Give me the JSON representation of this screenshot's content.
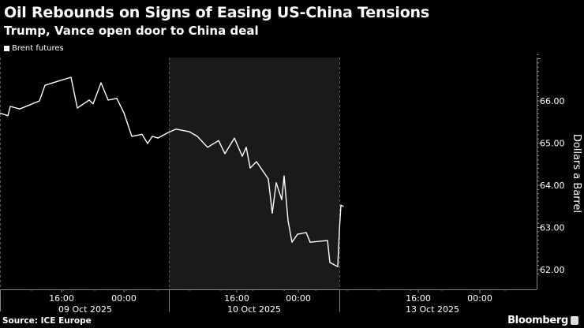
{
  "chart_data": {
    "type": "line",
    "title": "Oil Rebounds on Signs of Easing US-China Tensions",
    "subtitle": "Trump, Vance open door to China deal",
    "legend": [
      "Brent futures"
    ],
    "legend_placement": "top-left",
    "ylabel": "Dollars a Barrel",
    "ylim": [
      61.7,
      67.2
    ],
    "yticks": [
      62,
      63,
      64,
      65,
      66
    ],
    "ytick_labels": [
      "62.00",
      "63.00",
      "64.00",
      "65.00",
      "66.00"
    ],
    "xlim": [
      0,
      68
    ],
    "xticks": [
      {
        "x": 7.8,
        "label": "16:00"
      },
      {
        "x": 15.7,
        "label": "00:00"
      },
      {
        "x": 30,
        "label": "16:00"
      },
      {
        "x": 37.8,
        "label": "00:00"
      },
      {
        "x": 53,
        "label": "16:00"
      },
      {
        "x": 60.8,
        "label": "00:00"
      }
    ],
    "day_labels": [
      {
        "x": 10.8,
        "label": "09 Oct 2025"
      },
      {
        "x": 32.2,
        "label": "10 Oct 2025"
      },
      {
        "x": 54.8,
        "label": "13 Oct 2025"
      }
    ],
    "day_bounds": [
      0,
      21.4,
      43
    ],
    "shaded_day": [
      21.4,
      43
    ],
    "series": [
      {
        "name": "Brent futures",
        "color": "#ffffff",
        "x": [
          0,
          1,
          1.3,
          2.5,
          5,
          5.7,
          7.2,
          9,
          9.8,
          11.3,
          11.8,
          12.8,
          13.7,
          14.8,
          15.7,
          16.7,
          18,
          18.7,
          19.3,
          20,
          21.3,
          22.3,
          24,
          25,
          26.3,
          27.7,
          28.5,
          29.7,
          30.7,
          31.2,
          31.7,
          32.5,
          34,
          34.5,
          35,
          35.7,
          36,
          36.5,
          37,
          37.7,
          38.8,
          39.3,
          41.5,
          41.8,
          42.8,
          43,
          43.2,
          43.5
        ],
        "values": [
          65.71,
          65.65,
          65.87,
          65.81,
          66.0,
          66.37,
          66.46,
          66.56,
          65.83,
          66.02,
          65.93,
          66.43,
          66.02,
          66.06,
          65.72,
          65.16,
          65.21,
          64.99,
          65.16,
          65.12,
          65.25,
          65.33,
          65.27,
          65.16,
          64.9,
          65.06,
          64.75,
          65.12,
          64.69,
          64.9,
          64.41,
          64.56,
          64.15,
          63.34,
          64.06,
          63.66,
          64.22,
          63.16,
          62.65,
          62.84,
          62.88,
          62.65,
          62.69,
          62.17,
          62.07,
          62.92,
          63.53,
          63.5
        ]
      }
    ],
    "source": "Source: ICE Europe",
    "brand": "Bloomberg"
  }
}
